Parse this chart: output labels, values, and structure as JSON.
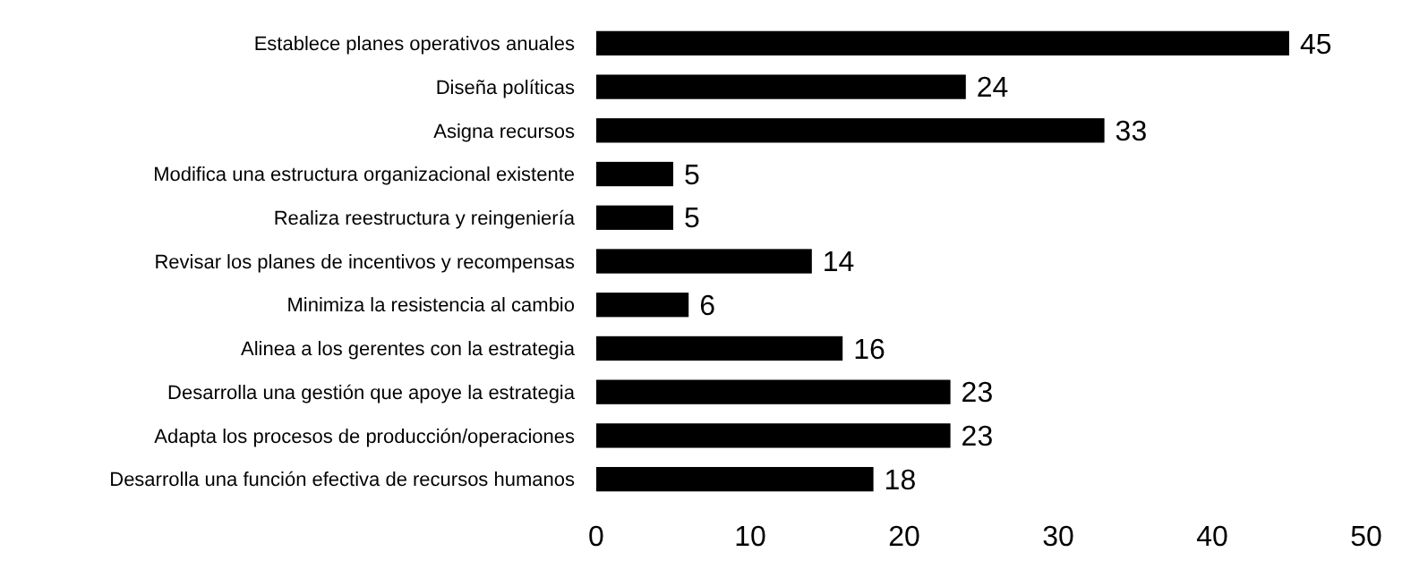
{
  "chart_data": {
    "type": "bar",
    "orientation": "horizontal",
    "categories": [
      "Establece planes operativos anuales",
      "Diseña políticas",
      "Asigna recursos",
      "Modifica una estructura organizacional existente",
      "Realiza reestructura y reingeniería",
      "Revisar los planes de incentivos y recompensas",
      "Minimiza la resistencia al cambio",
      "Alinea a los gerentes con la estrategia",
      "Desarrolla una gestión que apoye la estrategia",
      "Adapta los procesos de producción/operaciones",
      "Desarrolla una función efectiva de recursos humanos"
    ],
    "values": [
      45,
      24,
      33,
      5,
      5,
      14,
      6,
      16,
      23,
      23,
      18
    ],
    "color": "#000000",
    "xlim": [
      0,
      50
    ],
    "xticks": [
      0,
      10,
      20,
      30,
      40,
      50
    ],
    "data_labels": true,
    "grid": false
  }
}
